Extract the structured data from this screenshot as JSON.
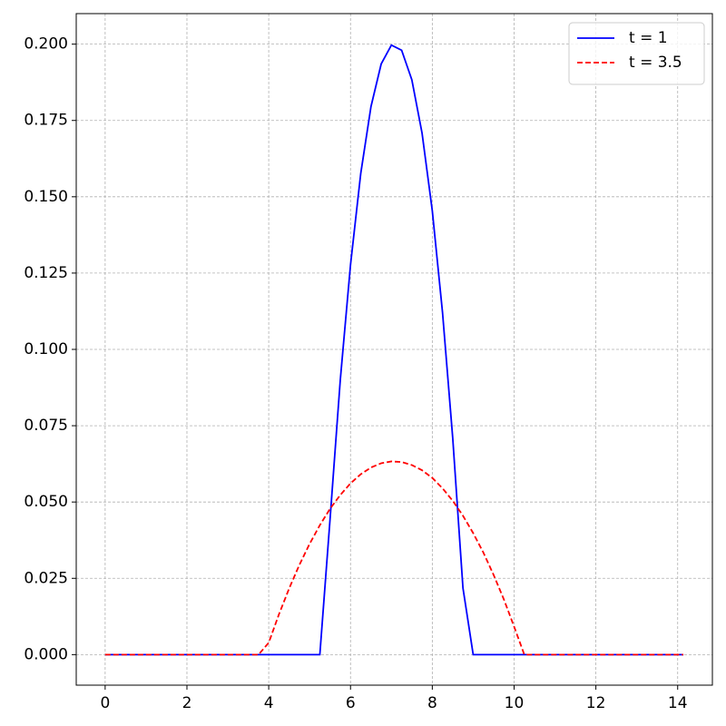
{
  "chart_data": {
    "type": "line",
    "x": [
      0,
      0.25,
      0.5,
      0.75,
      1,
      1.25,
      1.5,
      1.75,
      2,
      2.25,
      2.5,
      2.75,
      3,
      3.25,
      3.5,
      3.75,
      4,
      4.25,
      4.5,
      4.75,
      5,
      5.25,
      5.5,
      5.75,
      6,
      6.25,
      6.5,
      6.75,
      7,
      7.25,
      7.5,
      7.75,
      8,
      8.25,
      8.5,
      8.75,
      9,
      9.25,
      9.5,
      9.75,
      10,
      10.25,
      10.5,
      10.75,
      11,
      11.25,
      11.5,
      11.75,
      12,
      12.25,
      12.5,
      12.75,
      13,
      13.25,
      13.5,
      13.75,
      14,
      14.14
    ],
    "series": [
      {
        "name": "t = 1",
        "color": "#0000ff",
        "linestyle": "solid",
        "values": [
          0,
          0,
          0,
          0,
          0,
          0,
          0,
          0,
          0,
          0,
          0,
          0,
          0,
          0,
          0,
          0,
          0,
          0,
          0,
          0,
          0,
          0,
          0.0444,
          0.09,
          0.1277,
          0.1576,
          0.1795,
          0.1935,
          0.1997,
          0.198,
          0.1883,
          0.1708,
          0.1454,
          0.1121,
          0.0709,
          0.0218,
          0,
          0,
          0,
          0,
          0,
          0,
          0,
          0,
          0,
          0,
          0,
          0,
          0,
          0,
          0,
          0,
          0,
          0,
          0,
          0,
          0,
          0
        ]
      },
      {
        "name": "t = 3.5",
        "color": "#ff0000",
        "linestyle": "dashed",
        "values": [
          0,
          0,
          0,
          0,
          0,
          0,
          0,
          0,
          0,
          0,
          0,
          0,
          0,
          0,
          0,
          0,
          0.0039,
          0.0132,
          0.0217,
          0.0294,
          0.0363,
          0.0424,
          0.0478,
          0.0523,
          0.0561,
          0.0591,
          0.0613,
          0.0627,
          0.0633,
          0.0631,
          0.0621,
          0.0604,
          0.0579,
          0.0545,
          0.0504,
          0.0455,
          0.0398,
          0.0334,
          0.0261,
          0.0181,
          0.0092,
          0,
          0,
          0,
          0,
          0,
          0,
          0,
          0,
          0,
          0,
          0,
          0,
          0,
          0,
          0,
          0,
          0
        ]
      }
    ],
    "xlim": [
      -0.707,
      14.849
    ],
    "ylim": [
      -0.01,
      0.21
    ],
    "xticks": [
      0,
      2,
      4,
      6,
      8,
      10,
      12,
      14
    ],
    "yticks": [
      {
        "value": 0,
        "label": "0.000"
      },
      {
        "value": 0.025,
        "label": "0.025"
      },
      {
        "value": 0.05,
        "label": "0.050"
      },
      {
        "value": 0.075,
        "label": "0.075"
      },
      {
        "value": 0.1,
        "label": "0.100"
      },
      {
        "value": 0.125,
        "label": "0.125"
      },
      {
        "value": 0.15,
        "label": "0.150"
      },
      {
        "value": 0.175,
        "label": "0.175"
      },
      {
        "value": 0.2,
        "label": "0.200"
      }
    ],
    "grid": true,
    "legend": "upper right"
  }
}
